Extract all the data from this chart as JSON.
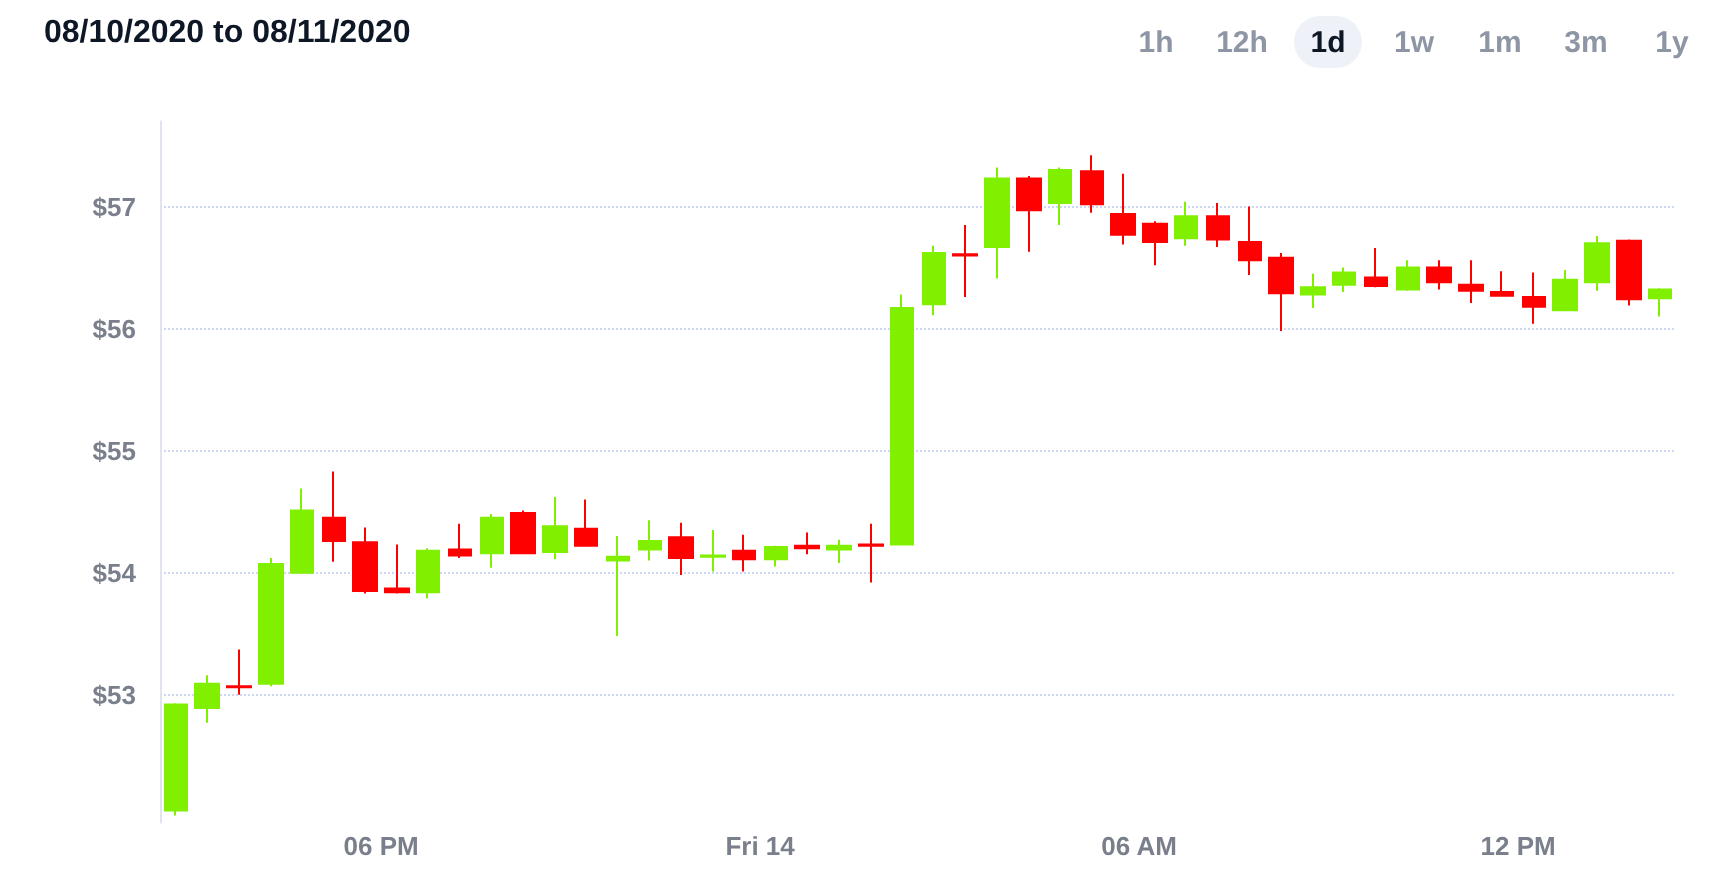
{
  "chart_data": {
    "type": "candlestick",
    "title": "08/10/2020 to 08/11/2020",
    "annotations": [
      "1h",
      "12h",
      "1d",
      "1w",
      "1m",
      "3m",
      "1y"
    ],
    "x": [
      "2020-08-13T14:45",
      "2020-08-13T15:15",
      "2020-08-13T15:45",
      "2020-08-13T16:15",
      "2020-08-13T16:45",
      "2020-08-13T17:15",
      "2020-08-13T17:45",
      "2020-08-13T18:15",
      "2020-08-13T18:45",
      "2020-08-13T19:15",
      "2020-08-13T19:45",
      "2020-08-13T20:15",
      "2020-08-13T20:45",
      "2020-08-13T21:15",
      "2020-08-13T21:45",
      "2020-08-13T22:15",
      "2020-08-13T22:45",
      "2020-08-13T23:15",
      "2020-08-13T23:45",
      "2020-08-14T00:15",
      "2020-08-14T00:45",
      "2020-08-14T01:15",
      "2020-08-14T01:45",
      "2020-08-14T02:15",
      "2020-08-14T02:45",
      "2020-08-14T03:15",
      "2020-08-14T03:45",
      "2020-08-14T04:15",
      "2020-08-14T04:45",
      "2020-08-14T05:15",
      "2020-08-14T05:45",
      "2020-08-14T06:15",
      "2020-08-14T06:45",
      "2020-08-14T07:15",
      "2020-08-14T07:45",
      "2020-08-14T08:15",
      "2020-08-14T08:45",
      "2020-08-14T09:15",
      "2020-08-14T09:45",
      "2020-08-14T10:15",
      "2020-08-14T10:45",
      "2020-08-14T11:15",
      "2020-08-14T11:45",
      "2020-08-14T12:15",
      "2020-08-14T12:45",
      "2020-08-14T13:15",
      "2020-08-14T13:45",
      "2020-08-14T14:15"
    ],
    "ohlc": [
      [
        52.05,
        52.93,
        52.01,
        52.92
      ],
      [
        52.89,
        53.16,
        52.77,
        53.09
      ],
      [
        53.07,
        53.37,
        53.0,
        53.06
      ],
      [
        53.09,
        54.12,
        53.07,
        54.07
      ],
      [
        54.0,
        54.69,
        54.0,
        54.51
      ],
      [
        54.45,
        54.83,
        54.09,
        54.26
      ],
      [
        54.25,
        54.37,
        53.83,
        53.85
      ],
      [
        53.87,
        54.23,
        53.83,
        53.84
      ],
      [
        53.84,
        54.2,
        53.79,
        54.18
      ],
      [
        54.19,
        54.4,
        54.12,
        54.14
      ],
      [
        54.16,
        54.48,
        54.04,
        54.45
      ],
      [
        54.49,
        54.51,
        54.15,
        54.16
      ],
      [
        54.17,
        54.62,
        54.11,
        54.38
      ],
      [
        54.36,
        54.6,
        54.22,
        54.22
      ],
      [
        54.1,
        54.3,
        53.48,
        54.13
      ],
      [
        54.19,
        54.43,
        54.1,
        54.26
      ],
      [
        54.29,
        54.41,
        53.98,
        54.12
      ],
      [
        54.13,
        54.35,
        54.01,
        54.14
      ],
      [
        54.18,
        54.31,
        54.01,
        54.11
      ],
      [
        54.11,
        54.22,
        54.05,
        54.21
      ],
      [
        54.22,
        54.33,
        54.15,
        54.2
      ],
      [
        54.19,
        54.27,
        54.08,
        54.22
      ],
      [
        54.23,
        54.4,
        53.92,
        54.22
      ],
      [
        54.23,
        56.28,
        54.23,
        56.17
      ],
      [
        56.2,
        56.68,
        56.11,
        56.62
      ],
      [
        56.61,
        56.85,
        56.26,
        56.6
      ],
      [
        56.67,
        57.32,
        56.41,
        57.23
      ],
      [
        57.23,
        57.25,
        56.63,
        56.97
      ],
      [
        57.03,
        57.32,
        56.85,
        57.3
      ],
      [
        57.29,
        57.42,
        56.95,
        57.02
      ],
      [
        56.94,
        57.27,
        56.69,
        56.77
      ],
      [
        56.86,
        56.88,
        56.52,
        56.71
      ],
      [
        56.74,
        57.04,
        56.68,
        56.92
      ],
      [
        56.92,
        57.03,
        56.67,
        56.73
      ],
      [
        56.71,
        57.0,
        56.44,
        56.56
      ],
      [
        56.58,
        56.62,
        55.98,
        56.29
      ],
      [
        56.28,
        56.45,
        56.17,
        56.34
      ],
      [
        56.36,
        56.5,
        56.3,
        56.46
      ],
      [
        56.42,
        56.66,
        56.34,
        56.35
      ],
      [
        56.32,
        56.56,
        56.31,
        56.5
      ],
      [
        56.5,
        56.56,
        56.32,
        56.38
      ],
      [
        56.36,
        56.56,
        56.21,
        56.31
      ],
      [
        56.3,
        56.47,
        56.27,
        56.27
      ],
      [
        56.26,
        56.46,
        56.04,
        56.18
      ],
      [
        56.15,
        56.48,
        56.15,
        56.4
      ],
      [
        56.38,
        56.76,
        56.31,
        56.7
      ],
      [
        56.72,
        56.73,
        56.19,
        56.24
      ],
      [
        56.25,
        56.33,
        56.1,
        56.32
      ]
    ],
    "colors": [
      "#80f000",
      "#80f000",
      "#ff0000",
      "#80f000",
      "#80f000",
      "#ff0000",
      "#ff0000",
      "#ff0000",
      "#80f000",
      "#ff0000",
      "#80f000",
      "#ff0000",
      "#80f000",
      "#ff0000",
      "#80f000",
      "#80f000",
      "#ff0000",
      "#80f000",
      "#ff0000",
      "#80f000",
      "#ff0000",
      "#80f000",
      "#ff0000",
      "#80f000",
      "#80f000",
      "#ff0000",
      "#80f000",
      "#ff0000",
      "#80f000",
      "#ff0000",
      "#ff0000",
      "#ff0000",
      "#80f000",
      "#ff0000",
      "#ff0000",
      "#ff0000",
      "#80f000",
      "#80f000",
      "#ff0000",
      "#80f000",
      "#ff0000",
      "#ff0000",
      "#ff0000",
      "#ff0000",
      "#80f000",
      "#80f000",
      "#ff0000",
      "#80f000"
    ],
    "xlim": [
      "2020-08-13T14:30",
      "2020-08-14T14:30"
    ],
    "xticks": [
      {
        "value": "2020-08-13T18:00",
        "label": "06 PM"
      },
      {
        "value": "2020-08-14T00:00",
        "label": "Fri 14"
      },
      {
        "value": "2020-08-14T06:00",
        "label": "06 AM"
      },
      {
        "value": "2020-08-14T12:00",
        "label": "12 PM"
      }
    ],
    "ylim": [
      51.95,
      57.7
    ],
    "yticks": [
      {
        "value": 53,
        "label": "$53"
      },
      {
        "value": 54,
        "label": "$54"
      },
      {
        "value": 55,
        "label": "$55"
      },
      {
        "value": 56,
        "label": "$56"
      },
      {
        "value": 57,
        "label": "$57"
      }
    ],
    "grid": "y"
  }
}
